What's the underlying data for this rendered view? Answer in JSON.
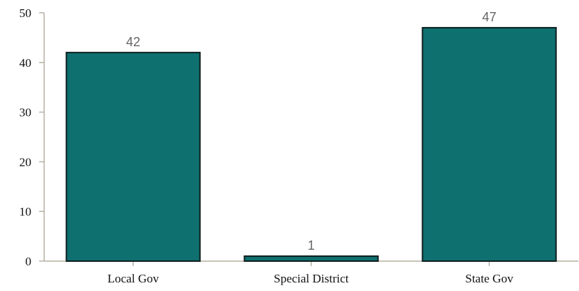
{
  "chart_data": {
    "type": "bar",
    "categories": [
      "Local Gov",
      "Special District",
      "State Gov"
    ],
    "values": [
      42,
      1,
      47
    ],
    "data_labels": [
      "42",
      "1",
      "47"
    ],
    "title": "",
    "xlabel": "",
    "ylabel": "",
    "ylim": [
      0,
      50
    ],
    "yticks": [
      0,
      10,
      20,
      30,
      40,
      50
    ],
    "ytick_labels": [
      "0",
      "10",
      "20",
      "30",
      "40",
      "50"
    ],
    "grid": false,
    "legend": "none",
    "bar_color": "#0f7070",
    "bar_edge_color": "#0f1f1f",
    "axis_color": "#b8b0a4",
    "data_label_color": "#666666"
  }
}
